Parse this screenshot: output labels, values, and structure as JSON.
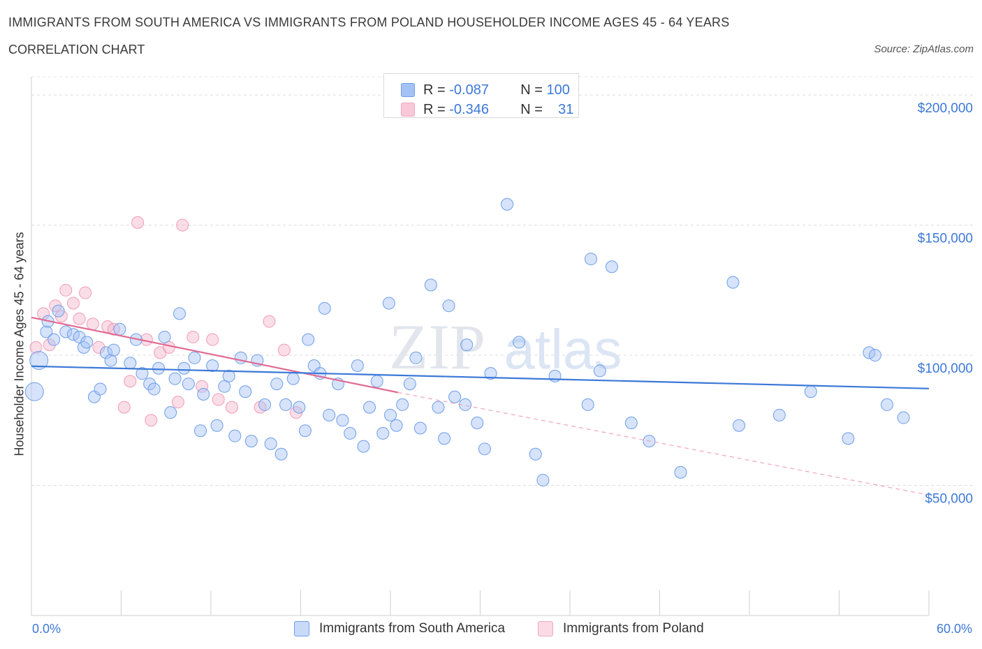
{
  "title": "IMMIGRANTS FROM SOUTH AMERICA VS IMMIGRANTS FROM POLAND HOUSEHOLDER INCOME AGES 45 - 64 YEARS",
  "subtitle": "CORRELATION CHART",
  "source": "Source: ZipAtlas.com",
  "watermark": {
    "zip": "ZIP",
    "atlas": "atlas"
  },
  "legend": {
    "r_label": "R =",
    "n_label": "N =",
    "series": [
      {
        "r": "-0.087",
        "n": "100"
      },
      {
        "r": "-0.346",
        "n": "31"
      }
    ]
  },
  "chart_data": {
    "type": "scatter",
    "title": "IMMIGRANTS FROM SOUTH AMERICA VS IMMIGRANTS FROM POLAND HOUSEHOLDER INCOME AGES 45 - 64 YEARS",
    "subtitle": "CORRELATION CHART",
    "xlabel": "",
    "ylabel": "Householder Income Ages 45 - 64 years",
    "xlim": [
      0,
      60
    ],
    "ylim": [
      0,
      207000
    ],
    "x_tick_labels": [
      "0.0%",
      "60.0%"
    ],
    "y_ticks": [
      50000,
      100000,
      150000,
      200000
    ],
    "y_tick_labels": [
      "$50,000",
      "$100,000",
      "$150,000",
      "$200,000"
    ],
    "grid": true,
    "legend_position": "top-center",
    "colors": {
      "south_america": "#a4c2f4",
      "south_america_line": "#3c78d8",
      "poland": "#f4b6c9",
      "poland_line": "#e06c93"
    },
    "series": [
      {
        "name": "Immigrants from South America",
        "trend": {
          "x": [
            0,
            60
          ],
          "y": [
            95800,
            87200
          ]
        },
        "points": [
          [
            0.2,
            86000
          ],
          [
            0.5,
            98000
          ],
          [
            1.0,
            109000
          ],
          [
            1.1,
            113000
          ],
          [
            1.5,
            106000
          ],
          [
            1.8,
            117000
          ],
          [
            2.3,
            109000
          ],
          [
            2.8,
            108000
          ],
          [
            3.2,
            107000
          ],
          [
            3.5,
            103000
          ],
          [
            3.7,
            105000
          ],
          [
            4.2,
            84000
          ],
          [
            4.6,
            87000
          ],
          [
            5.0,
            101000
          ],
          [
            5.3,
            98000
          ],
          [
            5.5,
            102000
          ],
          [
            5.9,
            110000
          ],
          [
            6.6,
            97000
          ],
          [
            7.0,
            106000
          ],
          [
            7.4,
            93000
          ],
          [
            7.9,
            89000
          ],
          [
            8.2,
            87000
          ],
          [
            8.5,
            95000
          ],
          [
            8.9,
            107000
          ],
          [
            9.3,
            78000
          ],
          [
            9.6,
            91000
          ],
          [
            9.9,
            116000
          ],
          [
            10.2,
            95000
          ],
          [
            10.5,
            89000
          ],
          [
            10.9,
            99000
          ],
          [
            11.3,
            71000
          ],
          [
            11.5,
            85000
          ],
          [
            12.1,
            96000
          ],
          [
            12.4,
            73000
          ],
          [
            12.9,
            88000
          ],
          [
            13.2,
            92000
          ],
          [
            13.6,
            69000
          ],
          [
            14.0,
            99000
          ],
          [
            14.3,
            86000
          ],
          [
            14.7,
            67000
          ],
          [
            15.1,
            98000
          ],
          [
            15.6,
            81000
          ],
          [
            16.0,
            66000
          ],
          [
            16.4,
            89000
          ],
          [
            16.7,
            62000
          ],
          [
            17.0,
            81000
          ],
          [
            17.5,
            91000
          ],
          [
            17.9,
            80000
          ],
          [
            18.3,
            71000
          ],
          [
            18.5,
            106000
          ],
          [
            18.9,
            96000
          ],
          [
            19.3,
            93000
          ],
          [
            19.6,
            118000
          ],
          [
            19.9,
            77000
          ],
          [
            20.5,
            89000
          ],
          [
            20.8,
            75000
          ],
          [
            21.3,
            70000
          ],
          [
            21.8,
            96000
          ],
          [
            22.2,
            65000
          ],
          [
            22.6,
            80000
          ],
          [
            23.1,
            90000
          ],
          [
            23.5,
            70000
          ],
          [
            23.9,
            120000
          ],
          [
            24.0,
            77000
          ],
          [
            24.4,
            73000
          ],
          [
            24.8,
            81000
          ],
          [
            25.3,
            89000
          ],
          [
            25.7,
            99000
          ],
          [
            26.0,
            72000
          ],
          [
            26.7,
            127000
          ],
          [
            27.2,
            80000
          ],
          [
            27.6,
            68000
          ],
          [
            27.9,
            119000
          ],
          [
            28.3,
            84000
          ],
          [
            29.0,
            81000
          ],
          [
            29.1,
            104000
          ],
          [
            29.8,
            74000
          ],
          [
            30.3,
            64000
          ],
          [
            30.7,
            93000
          ],
          [
            31.8,
            158000
          ],
          [
            32.6,
            105000
          ],
          [
            33.7,
            62000
          ],
          [
            34.2,
            52000
          ],
          [
            35.0,
            92000
          ],
          [
            37.2,
            81000
          ],
          [
            37.4,
            137000
          ],
          [
            38.0,
            94000
          ],
          [
            38.8,
            134000
          ],
          [
            40.1,
            74000
          ],
          [
            41.3,
            67000
          ],
          [
            43.4,
            55000
          ],
          [
            46.9,
            128000
          ],
          [
            47.3,
            73000
          ],
          [
            50.0,
            77000
          ],
          [
            52.1,
            86000
          ],
          [
            54.6,
            68000
          ],
          [
            56.0,
            101000
          ],
          [
            56.4,
            100000
          ],
          [
            57.2,
            81000
          ],
          [
            58.3,
            76000
          ]
        ]
      },
      {
        "name": "Immigrants from Poland",
        "trend": {
          "x": [
            0,
            24.5
          ],
          "y": [
            114500,
            85700
          ]
        },
        "trend_extension": {
          "x": [
            24.5,
            60
          ],
          "y": [
            85700,
            46300
          ]
        },
        "points": [
          [
            0.3,
            103000
          ],
          [
            0.8,
            116000
          ],
          [
            1.2,
            104000
          ],
          [
            1.6,
            119000
          ],
          [
            2.0,
            115000
          ],
          [
            2.3,
            125000
          ],
          [
            2.8,
            120000
          ],
          [
            3.2,
            114000
          ],
          [
            3.6,
            124000
          ],
          [
            4.1,
            112000
          ],
          [
            4.5,
            103000
          ],
          [
            5.1,
            111000
          ],
          [
            5.5,
            110000
          ],
          [
            6.2,
            80000
          ],
          [
            6.6,
            90000
          ],
          [
            7.1,
            151000
          ],
          [
            7.7,
            106000
          ],
          [
            8.0,
            75000
          ],
          [
            8.6,
            101000
          ],
          [
            9.2,
            103000
          ],
          [
            9.8,
            82000
          ],
          [
            10.1,
            150000
          ],
          [
            10.8,
            107000
          ],
          [
            11.4,
            88000
          ],
          [
            12.1,
            106000
          ],
          [
            12.5,
            83000
          ],
          [
            13.4,
            80000
          ],
          [
            15.3,
            80000
          ],
          [
            15.9,
            113000
          ],
          [
            16.9,
            102000
          ],
          [
            17.7,
            78000
          ]
        ]
      }
    ]
  }
}
